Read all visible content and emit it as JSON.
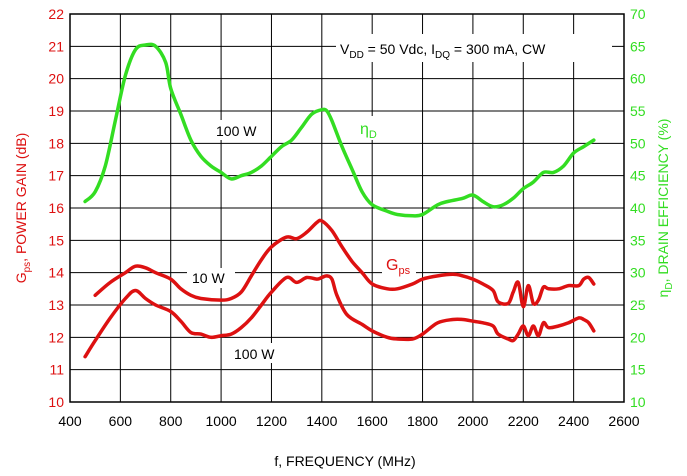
{
  "chart_data": {
    "type": "line",
    "xlabel": "f, FREQUENCY (MHz)",
    "ylabel_left": {
      "main": "G",
      "sub": "ps",
      "rest": ", POWER GAIN (dB)"
    },
    "ylabel_right": {
      "main": "η",
      "sub": "D",
      "rest": ", DRAIN EFFICIENCY (%)"
    },
    "xlim": [
      400,
      2600
    ],
    "ylim_left": [
      10,
      22
    ],
    "ylim_right": [
      10,
      70
    ],
    "x_ticks": [
      "400",
      "600",
      "800",
      "1000",
      "1200",
      "1400",
      "1600",
      "1800",
      "2000",
      "2200",
      "2400",
      "2600"
    ],
    "y_left_ticks": [
      "10",
      "11",
      "12",
      "13",
      "14",
      "15",
      "16",
      "17",
      "18",
      "19",
      "20",
      "21",
      "22"
    ],
    "y_right_ticks": [
      "10",
      "15",
      "20",
      "25",
      "30",
      "35",
      "40",
      "45",
      "50",
      "55",
      "60",
      "65",
      "70"
    ],
    "grid": true,
    "colors": {
      "gain": "#dd1111",
      "efficiency": "#33dd22"
    },
    "conditions": {
      "p1": "V",
      "s1": "DD",
      "p2": " = 50 Vdc, I",
      "s2": "DQ",
      "p3": " = 300 mA, CW"
    },
    "series": [
      {
        "name": "Gps 10 W",
        "axis": "left",
        "color": "#dd1111",
        "x": [
          500,
          560,
          620,
          660,
          700,
          740,
          800,
          840,
          880,
          920,
          1000,
          1040,
          1080,
          1120,
          1160,
          1200,
          1260,
          1300,
          1340,
          1380,
          1400,
          1440,
          1480,
          1520,
          1560,
          1600,
          1660,
          1700,
          1760,
          1800,
          1860,
          1920,
          1960,
          2000,
          2040,
          2080,
          2100,
          2140,
          2160,
          2180,
          2200,
          2220,
          2240,
          2260,
          2280,
          2300,
          2340,
          2380,
          2420,
          2440,
          2460,
          2480
        ],
        "y": [
          13.3,
          13.7,
          14.0,
          14.2,
          14.15,
          14.0,
          13.8,
          13.5,
          13.3,
          13.2,
          13.15,
          13.2,
          13.4,
          13.9,
          14.4,
          14.8,
          15.1,
          15.05,
          15.25,
          15.55,
          15.6,
          15.3,
          14.8,
          14.35,
          14.0,
          13.65,
          13.5,
          13.5,
          13.65,
          13.8,
          13.9,
          13.95,
          13.9,
          13.8,
          13.65,
          13.45,
          13.1,
          13.05,
          13.4,
          13.7,
          12.95,
          13.6,
          13.05,
          13.15,
          13.55,
          13.5,
          13.5,
          13.6,
          13.6,
          13.8,
          13.85,
          13.65
        ]
      },
      {
        "name": "Gps 100 W",
        "axis": "left",
        "color": "#dd1111",
        "x": [
          460,
          500,
          560,
          620,
          660,
          700,
          740,
          800,
          840,
          880,
          920,
          960,
          1000,
          1040,
          1080,
          1120,
          1160,
          1200,
          1260,
          1300,
          1340,
          1380,
          1400,
          1420,
          1440,
          1460,
          1500,
          1560,
          1600,
          1660,
          1700,
          1760,
          1800,
          1860,
          1920,
          1960,
          2000,
          2040,
          2080,
          2100,
          2140,
          2160,
          2180,
          2200,
          2220,
          2240,
          2260,
          2280,
          2300,
          2340,
          2380,
          2420,
          2440,
          2460,
          2480
        ],
        "y": [
          11.4,
          11.9,
          12.6,
          13.2,
          13.45,
          13.2,
          13.0,
          12.8,
          12.5,
          12.15,
          12.1,
          12.0,
          12.05,
          12.1,
          12.3,
          12.6,
          13.0,
          13.4,
          13.85,
          13.7,
          13.85,
          13.8,
          13.85,
          13.9,
          13.8,
          13.3,
          12.7,
          12.4,
          12.2,
          12.0,
          11.95,
          11.95,
          12.1,
          12.45,
          12.55,
          12.55,
          12.5,
          12.45,
          12.35,
          12.1,
          11.95,
          11.9,
          12.1,
          12.35,
          12.05,
          12.35,
          12.05,
          12.45,
          12.3,
          12.35,
          12.45,
          12.6,
          12.55,
          12.45,
          12.2
        ]
      },
      {
        "name": "ηD 100 W",
        "axis": "right",
        "color": "#33dd22",
        "x": [
          460,
          500,
          540,
          580,
          620,
          660,
          700,
          740,
          780,
          800,
          840,
          880,
          920,
          960,
          1000,
          1040,
          1080,
          1120,
          1160,
          1200,
          1240,
          1280,
          1320,
          1360,
          1400,
          1420,
          1440,
          1480,
          1520,
          1560,
          1600,
          1660,
          1700,
          1760,
          1800,
          1860,
          1900,
          1960,
          2000,
          2040,
          2080,
          2120,
          2160,
          2200,
          2240,
          2280,
          2320,
          2360,
          2400,
          2440,
          2480
        ],
        "y": [
          41,
          42.5,
          46.5,
          53.5,
          60.5,
          64.5,
          65.2,
          65.0,
          62.5,
          58.5,
          54.5,
          50.5,
          48.0,
          46.5,
          45.5,
          44.5,
          45.0,
          45.5,
          46.5,
          48.0,
          49.5,
          50.5,
          52.5,
          54.5,
          55.2,
          55.0,
          53.5,
          49.5,
          46.0,
          42.5,
          40.5,
          39.5,
          39.0,
          38.8,
          39.0,
          40.5,
          41.0,
          41.5,
          42.0,
          41.0,
          40.2,
          40.5,
          41.5,
          43.0,
          44.0,
          45.5,
          45.5,
          46.5,
          48.5,
          49.5,
          50.5
        ]
      }
    ],
    "annotations": {
      "gain_10w": "10 W",
      "gain_100w": "100 W",
      "eff_100w": "100 W",
      "eff_label": {
        "main": "η",
        "sub": "D"
      },
      "gain_label": {
        "main": "G",
        "sub": "ps"
      }
    }
  }
}
